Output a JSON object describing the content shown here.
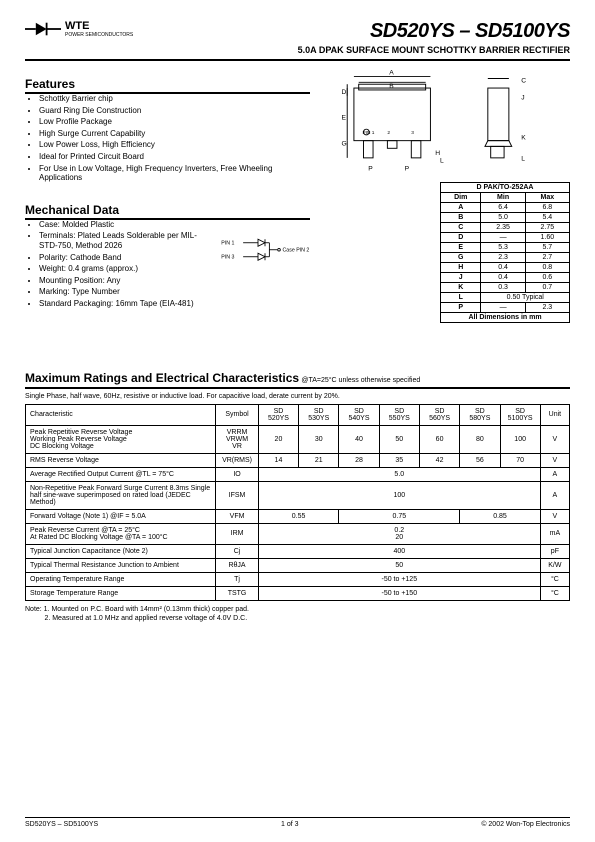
{
  "header": {
    "brand": "WTE",
    "brand_sub": "POWER SEMICONDUCTORS",
    "title": "SD520YS – SD5100YS",
    "subtitle": "5.0A DPAK SURFACE MOUNT SCHOTTKY BARRIER RECTIFIER"
  },
  "features": {
    "heading": "Features",
    "items": [
      "Schottky Barrier chip",
      "Guard Ring Die Construction",
      "Low Profile Package",
      "High Surge Current Capability",
      "Low Power Loss, High Efficiency",
      "Ideal for Printed Circuit Board",
      "For Use in Low Voltage, High Frequency Inverters, Free Wheeling Applications"
    ]
  },
  "mech": {
    "heading": "Mechanical Data",
    "items": [
      "Case: Molded Plastic",
      "Terminals: Plated Leads Solderable per MIL-STD-750, Method 2026",
      "Polarity: Cathode Band",
      "Weight: 0.4 grams (approx.)",
      "Mounting Position: Any",
      "Marking: Type Number",
      "Standard Packaging: 16mm Tape (EIA-481)"
    ]
  },
  "pins": {
    "pin1": "PIN 1",
    "pin3": "PIN 3",
    "case": "Case PIN 2"
  },
  "dim_table": {
    "caption": "D PAK/TO-252AA",
    "headers": [
      "Dim",
      "Min",
      "Max"
    ],
    "rows": [
      [
        "A",
        "6.4",
        "6.8"
      ],
      [
        "B",
        "5.0",
        "5.4"
      ],
      [
        "C",
        "2.35",
        "2.75"
      ],
      [
        "D",
        "—",
        "1.60"
      ],
      [
        "E",
        "5.3",
        "5.7"
      ],
      [
        "G",
        "2.3",
        "2.7"
      ],
      [
        "H",
        "0.4",
        "0.8"
      ],
      [
        "J",
        "0.4",
        "0.6"
      ],
      [
        "K",
        "0.3",
        "0.7"
      ]
    ],
    "l_row": [
      "L",
      "0.50 Typical"
    ],
    "p_row": [
      "P",
      "—",
      "2.3"
    ],
    "footer": "All Dimensions in mm"
  },
  "max": {
    "heading": "Maximum Ratings and Electrical Characteristics",
    "cond": "@TA=25°C unless otherwise specified",
    "note": "Single Phase, half wave, 60Hz, resistive or inductive load. For capacitive load, derate current by 20%.",
    "col_headers": [
      "Characteristic",
      "Symbol",
      "SD 520YS",
      "SD 530YS",
      "SD 540YS",
      "SD 550YS",
      "SD 560YS",
      "SD 580YS",
      "SD 5100YS",
      "Unit"
    ],
    "rows": [
      {
        "char": "Peak Repetitive Reverse Voltage\nWorking Peak Reverse Voltage\nDC Blocking Voltage",
        "sym": "VRRM\nVRWM\nVR",
        "vals": [
          "20",
          "30",
          "40",
          "50",
          "60",
          "80",
          "100"
        ],
        "unit": "V"
      },
      {
        "char": "RMS Reverse Voltage",
        "sym": "VR(RMS)",
        "vals": [
          "14",
          "21",
          "28",
          "35",
          "42",
          "56",
          "70"
        ],
        "unit": "V"
      },
      {
        "char": "Average Rectified Output Current       @TL = 75°C",
        "sym": "IO",
        "span": "5.0",
        "unit": "A"
      },
      {
        "char": "Non-Repetitive Peak Forward Surge Current 8.3ms Single half sine-wave superimposed on rated load (JEDEC Method)",
        "sym": "IFSM",
        "span": "100",
        "unit": "A"
      },
      {
        "char": "Forward Voltage (Note 1)             @IF = 5.0A",
        "sym": "VFM",
        "spans": [
          [
            "0.55",
            2
          ],
          [
            "0.75",
            3
          ],
          [
            "0.85",
            2
          ]
        ],
        "unit": "V"
      },
      {
        "char": "Peak Reverse Current           @TA = 25°C\nAt Rated DC Blocking Voltage   @TA = 100°C",
        "sym": "IRM",
        "span": "0.2\n20",
        "unit": "mA"
      },
      {
        "char": "Typical Junction Capacitance (Note 2)",
        "sym": "Cj",
        "span": "400",
        "unit": "pF"
      },
      {
        "char": "Typical Thermal Resistance Junction to Ambient",
        "sym": "RθJA",
        "span": "50",
        "unit": "K/W"
      },
      {
        "char": "Operating Temperature Range",
        "sym": "Tj",
        "span": "-50 to +125",
        "unit": "°C"
      },
      {
        "char": "Storage Temperature Range",
        "sym": "TSTG",
        "span": "-50 to +150",
        "unit": "°C"
      }
    ]
  },
  "notes": {
    "n1": "Note: 1. Mounted on P.C. Board with 14mm² (0.13mm thick) copper pad.",
    "n2": "          2. Measured at 1.0 MHz and applied reverse voltage of 4.0V D.C."
  },
  "footer": {
    "left": "SD520YS – SD5100YS",
    "center": "1 of 3",
    "right": "© 2002 Won-Top Electronics"
  },
  "pkg_labels": {
    "A": "A",
    "B": "B",
    "C": "C",
    "D": "D",
    "E": "E",
    "G": "G",
    "H": "H",
    "J": "J",
    "K": "K",
    "L": "L",
    "P": "P",
    "pin1": "PIN 1",
    "p2": "2",
    "p3": "3"
  }
}
